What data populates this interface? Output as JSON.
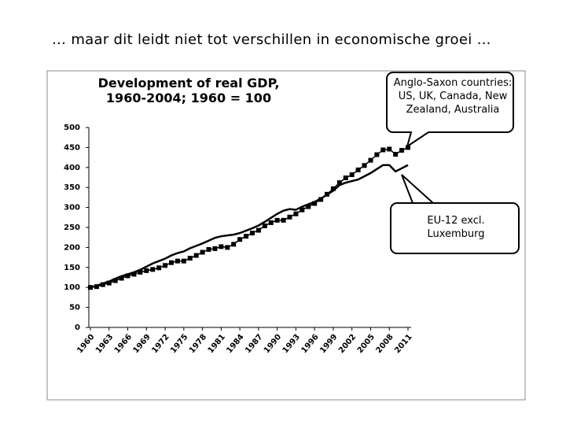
{
  "slide_title": "… maar dit leidt niet tot verschillen in economische groei …",
  "chart_data": {
    "type": "line",
    "title": "Development of real GDP, 1960-2004; 1960 = 100",
    "x": [
      1960,
      1961,
      1962,
      1963,
      1964,
      1965,
      1966,
      1967,
      1968,
      1969,
      1970,
      1971,
      1972,
      1973,
      1974,
      1975,
      1976,
      1977,
      1978,
      1979,
      1980,
      1981,
      1982,
      1983,
      1984,
      1985,
      1986,
      1987,
      1988,
      1989,
      1990,
      1991,
      1992,
      1993,
      1994,
      1995,
      1996,
      1997,
      1998,
      1999,
      2000,
      2001,
      2002,
      2003,
      2004,
      2005,
      2006,
      2007,
      2008,
      2009,
      2010,
      2011
    ],
    "series": [
      {
        "name": "Anglo-Saxon countries: US, UK, Canada, New Zealand, Australia",
        "color": "#000000",
        "marker": "square",
        "values": [
          100,
          102,
          107,
          111,
          117,
          123,
          129,
          133,
          138,
          142,
          145,
          149,
          155,
          162,
          166,
          166,
          173,
          180,
          188,
          195,
          197,
          202,
          200,
          208,
          220,
          228,
          236,
          243,
          254,
          262,
          268,
          268,
          276,
          284,
          294,
          302,
          310,
          320,
          333,
          347,
          362,
          374,
          382,
          394,
          405,
          418,
          432,
          444,
          446,
          433,
          443,
          450
        ]
      },
      {
        "name": "EU-12 excl. Luxemburg",
        "color": "#000000",
        "marker": "none",
        "values": [
          100,
          104,
          110,
          115,
          122,
          128,
          133,
          138,
          144,
          152,
          160,
          166,
          172,
          180,
          186,
          190,
          198,
          204,
          210,
          217,
          224,
          228,
          230,
          232,
          236,
          242,
          248,
          255,
          264,
          274,
          284,
          292,
          296,
          294,
          302,
          308,
          314,
          322,
          332,
          342,
          356,
          362,
          366,
          370,
          378,
          386,
          396,
          406,
          406,
          390,
          398,
          406
        ]
      }
    ],
    "xlim": [
      1960,
      2011
    ],
    "xticks": [
      1960,
      1963,
      1966,
      1969,
      1972,
      1975,
      1978,
      1981,
      1984,
      1987,
      1990,
      1993,
      1996,
      1999,
      2002,
      2005,
      2008,
      2011
    ],
    "ylim": [
      0,
      500
    ],
    "yticks": [
      0,
      50,
      100,
      150,
      200,
      250,
      300,
      350,
      400,
      450,
      500
    ],
    "grid": false
  }
}
